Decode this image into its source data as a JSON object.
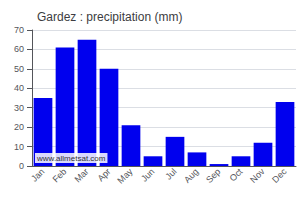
{
  "chart_data": {
    "type": "bar",
    "title": "Gardez : precipitation (mm)",
    "categories": [
      "Jan",
      "Feb",
      "Mar",
      "Apr",
      "May",
      "Jun",
      "Jul",
      "Aug",
      "Sep",
      "Oct",
      "Nov",
      "Dec"
    ],
    "values": [
      35,
      61,
      65,
      50,
      21,
      5,
      15,
      7,
      1,
      5,
      12,
      33
    ],
    "color": "#0000ee",
    "ylim": [
      0,
      70
    ],
    "yticks": [
      0,
      10,
      20,
      30,
      40,
      50,
      60,
      70
    ],
    "grid": true,
    "annotations": [
      "www.allmetsat.com"
    ]
  }
}
